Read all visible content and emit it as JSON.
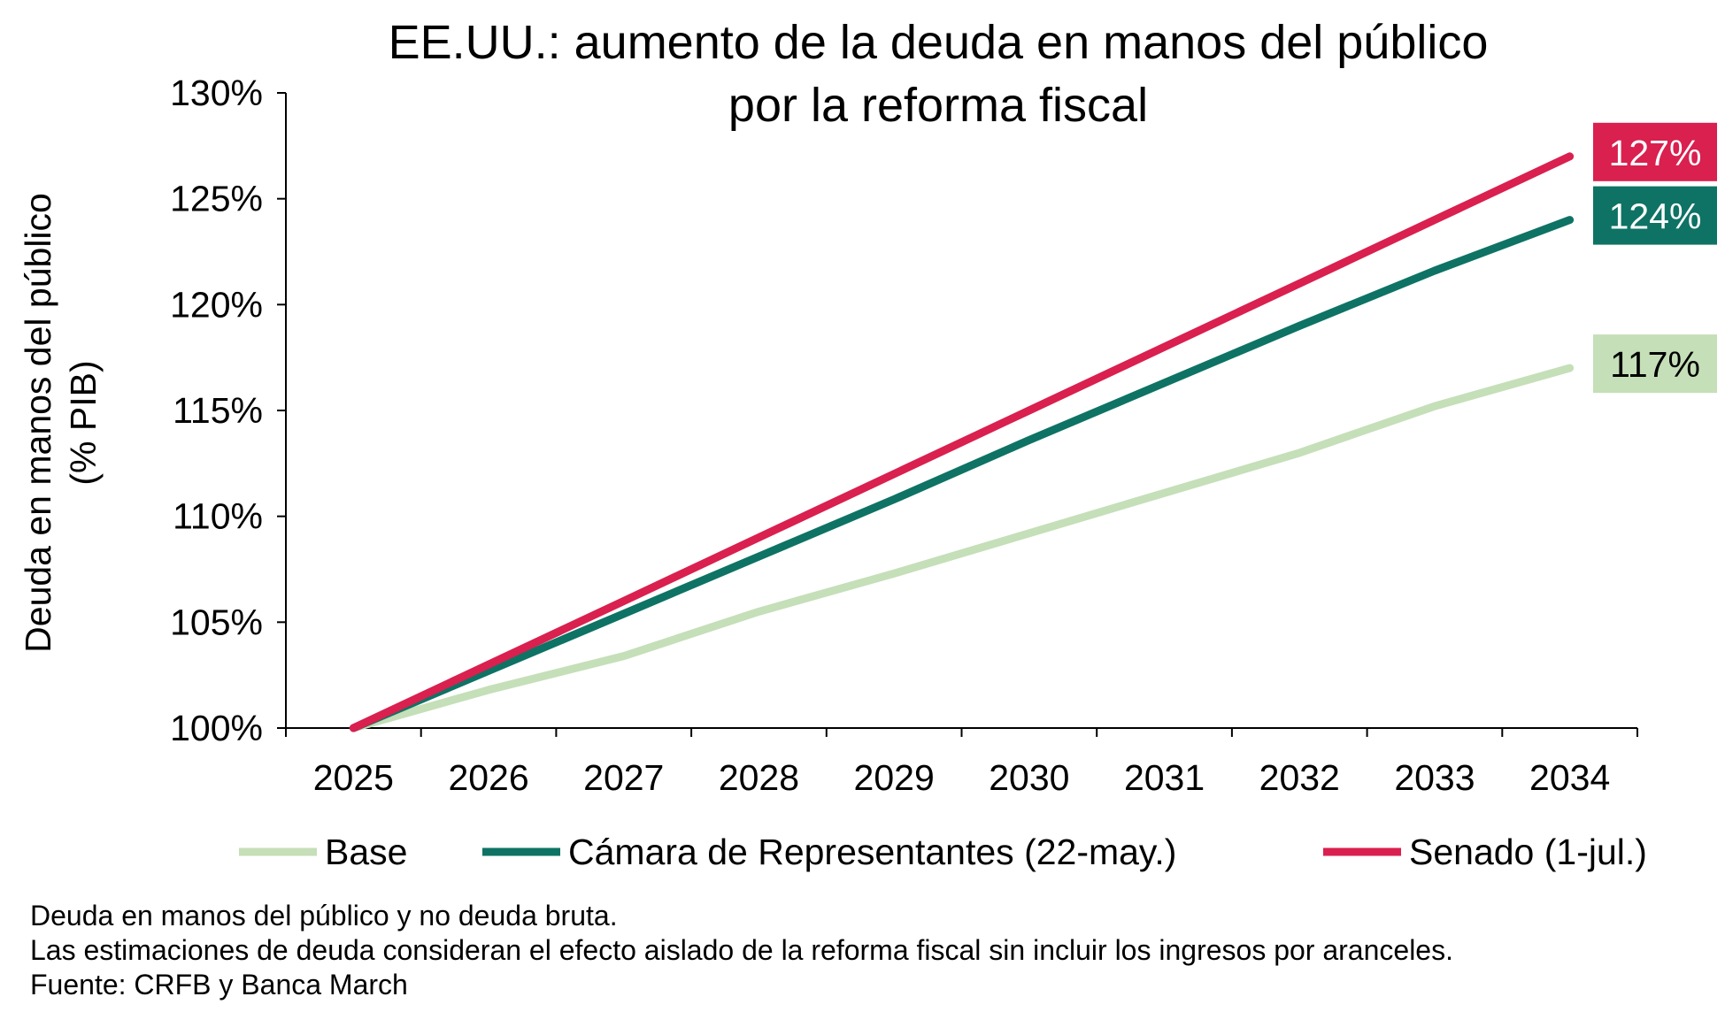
{
  "chart_data": {
    "type": "line",
    "title": "EE.UU.: aumento de la deuda en manos del público",
    "title_line2": "por la reforma fiscal",
    "ylabel": "Deuda en manos del público",
    "ylabel_line2": "(% PIB)",
    "xlabel": "",
    "ylim": [
      100,
      130
    ],
    "y_ticks": [
      "100%",
      "105%",
      "110%",
      "115%",
      "120%",
      "125%",
      "130%"
    ],
    "y_tick_values": [
      100,
      105,
      110,
      115,
      120,
      125,
      130
    ],
    "categories": [
      "2025",
      "2026",
      "2027",
      "2028",
      "2029",
      "2030",
      "2031",
      "2032",
      "2033",
      "2034"
    ],
    "series": [
      {
        "name": "Base",
        "color": "#c5dfb8",
        "values": [
          100,
          101.8,
          103.4,
          105.5,
          107.3,
          109.2,
          111.1,
          113.0,
          115.2,
          117.0
        ],
        "end_label": "117%",
        "end_label_bg": "#c5dfb8",
        "end_label_color": "#000000"
      },
      {
        "name": "Cámara de Representantes (22-may.)",
        "color": "#0e7364",
        "values": [
          100,
          102.7,
          105.4,
          108.1,
          110.8,
          113.6,
          116.3,
          119.0,
          121.6,
          124.0
        ],
        "end_label": "124%",
        "end_label_bg": "#0e7364",
        "end_label_color": "#ffffff"
      },
      {
        "name": "Senado (1-jul.)",
        "color": "#d9204f",
        "values": [
          100,
          103.0,
          106.0,
          109.0,
          112.0,
          115.0,
          118.0,
          121.0,
          124.0,
          127.0
        ],
        "end_label": "127%",
        "end_label_bg": "#d9204f",
        "end_label_color": "#ffffff"
      }
    ],
    "grid": false,
    "legend": "bottom"
  },
  "notes": {
    "line1": "Deuda en manos del público y no deuda bruta.",
    "line2": "Las estimaciones de deuda consideran el efecto aislado de la reforma fiscal sin incluir los ingresos por aranceles.",
    "line3": "Fuente: CRFB  y Banca March"
  }
}
